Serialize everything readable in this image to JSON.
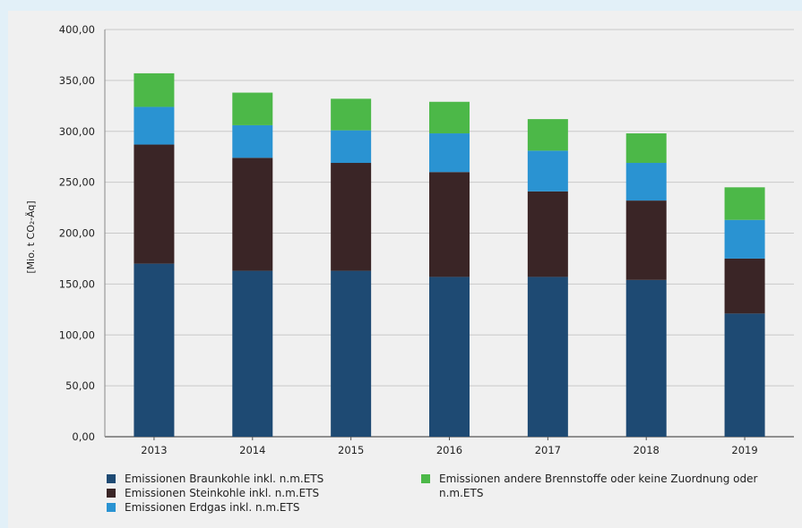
{
  "chart_data": {
    "type": "bar",
    "stacked": true,
    "ylabel": "[Mio. t CO₂-Äq]",
    "ylim": [
      0,
      400
    ],
    "ytick_labels": [
      "0,00",
      "50,00",
      "100,00",
      "150,00",
      "200,00",
      "250,00",
      "300,00",
      "350,00",
      "400,00"
    ],
    "categories": [
      "2013",
      "2014",
      "2015",
      "2016",
      "2017",
      "2018",
      "2019"
    ],
    "series": [
      {
        "name": "Emissionen Braunkohle inkl. n.m.ETS",
        "color": "#1e4a73",
        "values": [
          170,
          163,
          163,
          157,
          157,
          154,
          121
        ]
      },
      {
        "name": "Emissionen Steinkohle inkl. n.m.ETS",
        "color": "#3a2526",
        "values": [
          117,
          111,
          106,
          103,
          84,
          78,
          54
        ]
      },
      {
        "name": "Emissionen Erdgas inkl. n.m.ETS",
        "color": "#2a93d2",
        "values": [
          37,
          32,
          32,
          38,
          40,
          37,
          38
        ]
      },
      {
        "name": "Emissionen andere Brennstoffe oder keine Zuordnung oder n.m.ETS",
        "color": "#4cb848",
        "values": [
          33,
          32,
          31,
          31,
          31,
          29,
          32
        ]
      }
    ],
    "grid": true,
    "legend_position": "bottom"
  },
  "legend": {
    "item_0": "Emissionen Braunkohle inkl. n.m.ETS",
    "item_1": "Emissionen Steinkohle inkl. n.m.ETS",
    "item_2": "Emissionen Erdgas inkl. n.m.ETS",
    "item_3": "Emissionen andere Brennstoffe oder keine Zuordnung oder n.m.ETS"
  }
}
